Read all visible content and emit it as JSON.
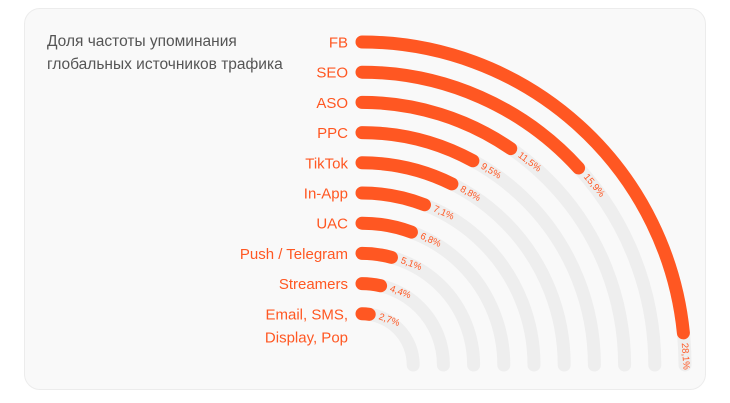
{
  "chart_data": {
    "type": "radial-bar",
    "title": "Доля частоты упоминания глобальных источников трафика",
    "categories": [
      "FB",
      "SEO",
      "ASO",
      "PPC",
      "TikTok",
      "In-App",
      "UAC",
      "Push / Telegram",
      "Streamers",
      "Email, SMS, Display, Pop"
    ],
    "values": [
      28.1,
      15.9,
      11.5,
      9.5,
      8.8,
      7.1,
      6.8,
      5.1,
      4.4,
      2.7
    ],
    "value_labels": [
      "28,1%",
      "15,9%",
      "11,5%",
      "9,5%",
      "8,8%",
      "7,1%",
      "6,8%",
      "5,1%",
      "4,4%",
      "2,7%"
    ],
    "unit": "%",
    "colors": {
      "bar": "#ff5722",
      "track": "#eeeeee",
      "label": "#ff5722",
      "title": "#555555"
    }
  }
}
